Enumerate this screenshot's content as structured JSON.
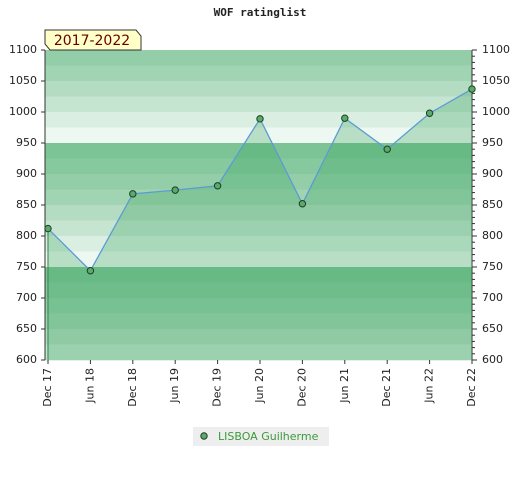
{
  "chart_data": {
    "type": "line",
    "title": "WOF ratinglist",
    "annotation": "2017-2022",
    "categories": [
      "Dec 17",
      "Jun 18",
      "Dec 18",
      "Jun 19",
      "Dec 19",
      "Jun 20",
      "Dec 20",
      "Jun 21",
      "Dec 21",
      "Jun 22",
      "Dec 22"
    ],
    "series": [
      {
        "name": "LISBOA Guilherme",
        "color": "#5b9bd5",
        "marker_color": "#5aaa6a",
        "values": [
          812,
          744,
          868,
          874,
          881,
          989,
          852,
          990,
          940,
          998,
          1037
        ]
      }
    ],
    "ylim": [
      600,
      1100
    ],
    "yticks": [
      600,
      650,
      700,
      750,
      800,
      850,
      900,
      950,
      1000,
      1050,
      1100
    ]
  }
}
